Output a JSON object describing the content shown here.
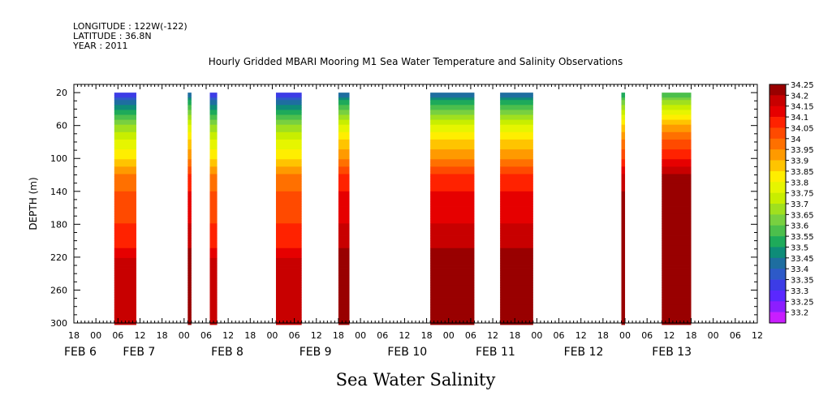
{
  "header": {
    "longitude": "LONGITUDE : 122W(-122)",
    "latitude": "LATITUDE : 36.8N",
    "year": "YEAR : 2011"
  },
  "chart_data": {
    "type": "heatmap",
    "title": "Hourly Gridded MBARI Mooring M1 Sea Water Temperature and Salinity Observations",
    "ylabel": "DEPTH (m)",
    "footer_label": "Sea Water Salinity",
    "y_range": [
      10,
      300
    ],
    "y_ticks": [
      "20",
      "60",
      "100",
      "140",
      "180",
      "220",
      "260",
      "300"
    ],
    "x_range_hours": [
      0,
      186
    ],
    "x_hour_ticks": [
      {
        "label": "18",
        "t": 0
      },
      {
        "label": "00",
        "t": 6
      },
      {
        "label": "06",
        "t": 12
      },
      {
        "label": "12",
        "t": 18
      },
      {
        "label": "18",
        "t": 24
      },
      {
        "label": "00",
        "t": 30
      },
      {
        "label": "06",
        "t": 36
      },
      {
        "label": "12",
        "t": 42
      },
      {
        "label": "18",
        "t": 48
      },
      {
        "label": "00",
        "t": 54
      },
      {
        "label": "06",
        "t": 60
      },
      {
        "label": "12",
        "t": 66
      },
      {
        "label": "18",
        "t": 72
      },
      {
        "label": "00",
        "t": 78
      },
      {
        "label": "06",
        "t": 84
      },
      {
        "label": "12",
        "t": 90
      },
      {
        "label": "18",
        "t": 96
      },
      {
        "label": "00",
        "t": 102
      },
      {
        "label": "06",
        "t": 108
      },
      {
        "label": "12",
        "t": 114
      },
      {
        "label": "18",
        "t": 120
      },
      {
        "label": "00",
        "t": 126
      },
      {
        "label": "06",
        "t": 132
      },
      {
        "label": "12",
        "t": 138
      },
      {
        "label": "18",
        "t": 144
      },
      {
        "label": "00",
        "t": 150
      },
      {
        "label": "06",
        "t": 156
      },
      {
        "label": "12",
        "t": 162
      },
      {
        "label": "18",
        "t": 168
      },
      {
        "label": "00",
        "t": 174
      },
      {
        "label": "06",
        "t": 180
      },
      {
        "label": "12",
        "t": 186
      }
    ],
    "x_date_labels": [
      {
        "label": "FEB  6",
        "t": 0
      },
      {
        "label": "FEB  7",
        "t": 16
      },
      {
        "label": "FEB  8",
        "t": 40
      },
      {
        "label": "FEB  9",
        "t": 64
      },
      {
        "label": "FEB 10",
        "t": 88
      },
      {
        "label": "FEB 11",
        "t": 112
      },
      {
        "label": "FEB 12",
        "t": 136
      },
      {
        "label": "FEB 13",
        "t": 160
      }
    ],
    "colorbar": {
      "levels": [
        "34.25",
        "34.2",
        "34.15",
        "34.1",
        "34.05",
        "34",
        "33.95",
        "33.9",
        "33.85",
        "33.8",
        "33.75",
        "33.7",
        "33.65",
        "33.6",
        "33.55",
        "33.5",
        "33.45",
        "33.4",
        "33.35",
        "33.3",
        "33.25",
        "33.2"
      ],
      "colors": [
        "#990000",
        "#c80000",
        "#e60000",
        "#ff2200",
        "#ff4a00",
        "#ff7000",
        "#ff9a00",
        "#ffc400",
        "#ffee00",
        "#e6f500",
        "#c8ee00",
        "#a0e01e",
        "#78d040",
        "#4cbf4c",
        "#1eaa5a",
        "#0e8c78",
        "#1e6ea0",
        "#2d5ac8",
        "#3c3ce6",
        "#5a28ff",
        "#8c1eff",
        "#c81eff"
      ]
    },
    "segments": [
      {
        "start_hour": 11,
        "end_hour": 17,
        "surface_level": 33.3
      },
      {
        "start_hour": 31,
        "end_hour": 32,
        "surface_level": 33.4
      },
      {
        "start_hour": 37,
        "end_hour": 39,
        "surface_level": 33.3
      },
      {
        "start_hour": 55,
        "end_hour": 62,
        "surface_level": 33.3
      },
      {
        "start_hour": 72,
        "end_hour": 75,
        "surface_level": 33.4
      },
      {
        "start_hour": 97,
        "end_hour": 109,
        "surface_level": 33.4
      },
      {
        "start_hour": 116,
        "end_hour": 125,
        "surface_level": 33.4
      },
      {
        "start_hour": 149,
        "end_hour": 150,
        "surface_level": 33.5
      },
      {
        "start_hour": 160,
        "end_hour": 168,
        "surface_level": 33.55
      }
    ],
    "profile": {
      "depths": [
        10,
        20,
        30,
        40,
        50,
        60,
        70,
        80,
        90,
        100,
        110,
        120,
        130,
        140,
        150,
        160,
        180,
        200,
        210,
        220,
        230,
        250,
        270,
        300
      ],
      "offsets": [
        0.0,
        0.0,
        0.1,
        0.2,
        0.28,
        0.36,
        0.42,
        0.46,
        0.5,
        0.55,
        0.6,
        0.65,
        0.68,
        0.7,
        0.72,
        0.74,
        0.75,
        0.76,
        0.8,
        0.85,
        0.88,
        0.9,
        0.9,
        0.9
      ]
    },
    "grid": false,
    "legend_position": "right"
  }
}
